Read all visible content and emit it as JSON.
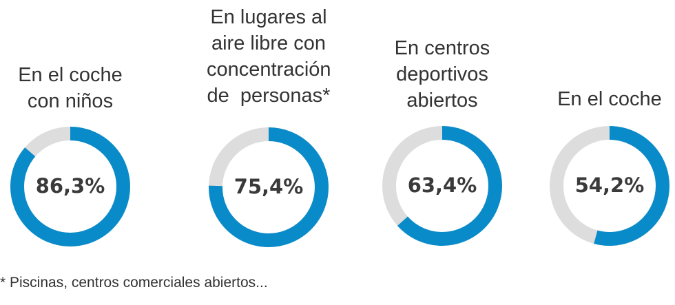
{
  "chart_data": {
    "type": "pie",
    "subtype": "donut",
    "items": [
      {
        "label_lines": [
          "En el coche",
          "con niños"
        ],
        "value": 86.3,
        "value_label": "86,3%"
      },
      {
        "label_lines": [
          "En lugares al",
          "aire libre con",
          "concentración",
          "de  personas*"
        ],
        "value": 75.4,
        "value_label": "75,4%"
      },
      {
        "label_lines": [
          "En centros",
          "deportivos",
          "abiertos"
        ],
        "value": 63.4,
        "value_label": "63,4%"
      },
      {
        "label_lines": [
          "En el coche"
        ],
        "value": 54.2,
        "value_label": "54,2%"
      }
    ],
    "max": 100,
    "footnote": "* Piscinas, centros comerciales abiertos..."
  },
  "colors": {
    "filled": "#0a8bc9",
    "remainder": "#dddddd",
    "text": "#333333"
  }
}
